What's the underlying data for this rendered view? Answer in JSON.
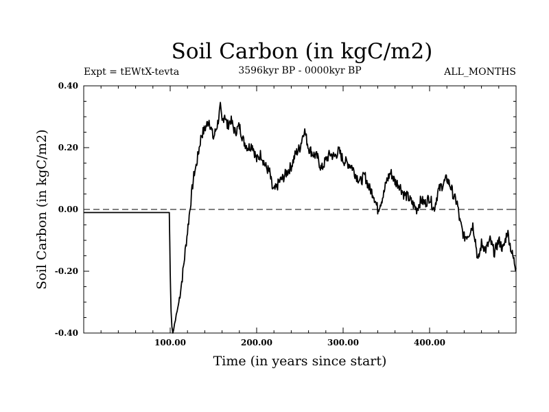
{
  "chart_data": {
    "type": "line",
    "title": "Soil Carbon (in kgC/m2)",
    "subtitle": "3596kyr BP - 0000kyr BP",
    "left_label": "Expt = tEWtX-tevta",
    "right_label": "ALL_MONTHS",
    "xlabel": "Time (in years since start)",
    "ylabel": "Soil Carbon (in kgC/m2)",
    "xlim": [
      0,
      500
    ],
    "ylim": [
      -0.4,
      0.4
    ],
    "x_ticks": [
      100,
      200,
      300,
      400
    ],
    "x_tick_labels": [
      "100.00",
      "200.00",
      "300.00",
      "400.00"
    ],
    "y_ticks": [
      -0.4,
      -0.2,
      0.0,
      0.2,
      0.4
    ],
    "y_tick_labels": [
      "-0.40",
      "-0.20",
      "0.00",
      "0.20",
      "0.40"
    ],
    "reference_line": 0.0,
    "series": [
      {
        "name": "Soil Carbon",
        "x": [
          0,
          99,
          100,
          101,
          102,
          103,
          104,
          105,
          106,
          107,
          108,
          110,
          112,
          114,
          116,
          118,
          120,
          122,
          124,
          126,
          128,
          130,
          133,
          136,
          140,
          145,
          150,
          155,
          158,
          160,
          163,
          166,
          170,
          175,
          180,
          185,
          190,
          195,
          200,
          205,
          210,
          215,
          218,
          220,
          223,
          226,
          230,
          235,
          240,
          245,
          250,
          255,
          260,
          265,
          270,
          275,
          280,
          285,
          290,
          295,
          300,
          305,
          310,
          315,
          320,
          325,
          330,
          335,
          338,
          340,
          343,
          347,
          350,
          355,
          360,
          365,
          370,
          375,
          380,
          385,
          390,
          395,
          400,
          405,
          410,
          415,
          420,
          425,
          428,
          432,
          435,
          440,
          445,
          450,
          453,
          456,
          460,
          465,
          470,
          475,
          480,
          485,
          490,
          495,
          500
        ],
        "values": [
          -0.01,
          -0.01,
          -0.2,
          -0.33,
          -0.38,
          -0.4,
          -0.39,
          -0.37,
          -0.36,
          -0.34,
          -0.33,
          -0.3,
          -0.26,
          -0.22,
          -0.17,
          -0.12,
          -0.07,
          -0.02,
          0.03,
          0.08,
          0.12,
          0.14,
          0.19,
          0.24,
          0.26,
          0.29,
          0.23,
          0.28,
          0.33,
          0.28,
          0.31,
          0.27,
          0.29,
          0.25,
          0.27,
          0.22,
          0.2,
          0.21,
          0.16,
          0.18,
          0.14,
          0.12,
          0.07,
          0.06,
          0.07,
          0.09,
          0.1,
          0.12,
          0.14,
          0.18,
          0.2,
          0.26,
          0.2,
          0.18,
          0.17,
          0.13,
          0.16,
          0.18,
          0.17,
          0.19,
          0.16,
          0.15,
          0.14,
          0.11,
          0.09,
          0.11,
          0.07,
          0.05,
          0.02,
          0.0,
          0.02,
          0.05,
          0.09,
          0.12,
          0.09,
          0.08,
          0.05,
          0.04,
          0.02,
          0.0,
          0.03,
          0.02,
          0.04,
          0.0,
          0.06,
          0.08,
          0.1,
          0.07,
          0.04,
          0.02,
          -0.04,
          -0.09,
          -0.08,
          -0.05,
          -0.1,
          -0.17,
          -0.11,
          -0.13,
          -0.1,
          -0.14,
          -0.1,
          -0.13,
          -0.07,
          -0.14,
          -0.19
        ]
      }
    ]
  }
}
